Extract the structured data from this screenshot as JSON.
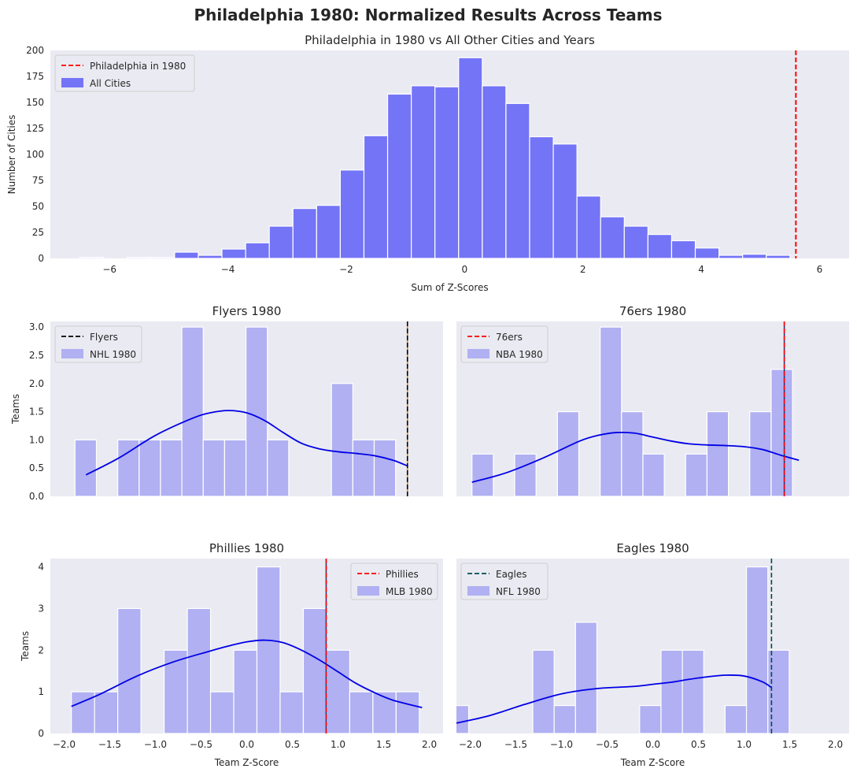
{
  "suptitle": "Philadelphia 1980: Normalized Results Across Teams",
  "colors": {
    "background": "#eaeaf2",
    "hist_main": "#7474f7",
    "hist_team": "#b0b0f2",
    "kde": "#0000e6",
    "red": "#ff0000",
    "black": "#000000",
    "navy": "#1f2f6e",
    "teal": "#004d4d"
  },
  "chart_data": [
    {
      "type": "histogram",
      "title": "Philadelphia in 1980 vs All Other Cities and Years",
      "xlabel": "Sum of Z-Scores",
      "ylabel": "Number of Cities",
      "xlim": [
        -7.0,
        6.5
      ],
      "ylim": [
        0,
        200
      ],
      "xticks": [
        "−6",
        "−4",
        "−2",
        "0",
        "2",
        "4",
        "6"
      ],
      "xtick_values": [
        -6,
        -4,
        -2,
        0,
        2,
        4,
        6
      ],
      "yticks": [
        "0",
        "25",
        "50",
        "75",
        "100",
        "125",
        "150",
        "175",
        "200"
      ],
      "ytick_values": [
        0,
        25,
        50,
        75,
        100,
        125,
        150,
        175,
        200
      ],
      "bin_start": -6.5,
      "bin_width": 0.4,
      "counts": [
        1,
        0,
        1,
        1,
        6,
        3,
        9,
        15,
        31,
        48,
        51,
        85,
        118,
        158,
        166,
        165,
        193,
        166,
        149,
        117,
        110,
        60,
        40,
        31,
        23,
        17,
        10,
        3,
        4,
        3
      ],
      "kde": false,
      "vline": {
        "x": 5.6,
        "color": "#ff0000",
        "style": "dashed"
      },
      "legend": [
        {
          "label": "Philadelphia in 1980",
          "kind": "line",
          "color": "#ff0000"
        },
        {
          "label": "All Cities",
          "kind": "patch",
          "color": "#7474f7"
        }
      ],
      "legend_position": "upper left"
    },
    {
      "type": "histogram",
      "title": "Flyers 1980",
      "xlabel": "",
      "ylabel": "Teams",
      "xlim": [
        -2.15,
        2.15
      ],
      "ylim": [
        0,
        3.1
      ],
      "xticks": [],
      "xtick_values": [],
      "yticks": [
        "0.0",
        "0.5",
        "1.0",
        "1.5",
        "2.0",
        "2.5",
        "3.0"
      ],
      "ytick_values": [
        0,
        0.5,
        1.0,
        1.5,
        2.0,
        2.5,
        3.0
      ],
      "bin_start": -1.88,
      "bin_width": 0.234,
      "counts": [
        1,
        0,
        1,
        1,
        1,
        3,
        1,
        1,
        3,
        1,
        0,
        0,
        2,
        1,
        1
      ],
      "kde": true,
      "kde_points": [
        [
          -1.76,
          0.38
        ],
        [
          -1.4,
          0.68
        ],
        [
          -1.0,
          1.08
        ],
        [
          -0.6,
          1.38
        ],
        [
          -0.4,
          1.48
        ],
        [
          -0.2,
          1.52
        ],
        [
          0.0,
          1.48
        ],
        [
          0.2,
          1.34
        ],
        [
          0.4,
          1.13
        ],
        [
          0.6,
          0.94
        ],
        [
          0.8,
          0.84
        ],
        [
          1.0,
          0.79
        ],
        [
          1.2,
          0.76
        ],
        [
          1.4,
          0.72
        ],
        [
          1.6,
          0.64
        ],
        [
          1.76,
          0.54
        ]
      ],
      "vline": {
        "x": 1.76,
        "color": "#000000",
        "style": "dashed"
      },
      "legend": [
        {
          "label": "Flyers",
          "kind": "line",
          "color": "#000000"
        },
        {
          "label": "NHL 1980",
          "kind": "patch",
          "color": "#b0b0f2"
        }
      ],
      "legend_position": "upper left"
    },
    {
      "type": "histogram",
      "title": "76ers 1980",
      "xlabel": "",
      "ylabel": "",
      "xlim": [
        -2.15,
        2.15
      ],
      "ylim": [
        0,
        3.1
      ],
      "xticks": [],
      "xtick_values": [],
      "yticks": [],
      "ytick_values": [],
      "bin_start": -1.98,
      "bin_width": 0.234,
      "counts": [
        0.75,
        0,
        0.75,
        0,
        1.5,
        0,
        3.0,
        1.5,
        0.75,
        0,
        0.75,
        1.5,
        0,
        1.5,
        2.25
      ],
      "kde": true,
      "kde_points": [
        [
          -1.98,
          0.25
        ],
        [
          -1.6,
          0.42
        ],
        [
          -1.2,
          0.68
        ],
        [
          -0.8,
          0.98
        ],
        [
          -0.6,
          1.08
        ],
        [
          -0.4,
          1.13
        ],
        [
          -0.2,
          1.12
        ],
        [
          0.0,
          1.05
        ],
        [
          0.2,
          0.98
        ],
        [
          0.4,
          0.93
        ],
        [
          0.6,
          0.91
        ],
        [
          0.8,
          0.9
        ],
        [
          1.0,
          0.88
        ],
        [
          1.2,
          0.83
        ],
        [
          1.4,
          0.73
        ],
        [
          1.6,
          0.64
        ]
      ],
      "vline": {
        "x": 1.44,
        "color": "#ff0000",
        "style": "dashed"
      },
      "legend": [
        {
          "label": "76ers",
          "kind": "line",
          "color": "#ff0000"
        },
        {
          "label": "NBA 1980",
          "kind": "patch",
          "color": "#b0b0f2"
        }
      ],
      "legend_position": "upper left"
    },
    {
      "type": "histogram",
      "title": "Phillies 1980",
      "xlabel": "Team Z-Score",
      "ylabel": "Teams",
      "xlim": [
        -2.15,
        2.15
      ],
      "ylim": [
        0,
        4.2
      ],
      "xticks": [
        "−2.0",
        "−1.5",
        "−1.0",
        "−0.5",
        "0.0",
        "0.5",
        "1.0",
        "1.5",
        "2.0"
      ],
      "xtick_values": [
        -2.0,
        -1.5,
        -1.0,
        -0.5,
        0.0,
        0.5,
        1.0,
        1.5,
        2.0
      ],
      "yticks": [
        "0",
        "1",
        "2",
        "3",
        "4"
      ],
      "ytick_values": [
        0,
        1,
        2,
        3,
        4
      ],
      "bin_start": -1.92,
      "bin_width": 0.254,
      "counts": [
        1,
        1,
        3,
        0,
        2,
        3,
        1,
        2,
        4,
        1,
        3,
        2,
        1,
        1,
        1
      ],
      "kde": true,
      "kde_points": [
        [
          -1.92,
          0.65
        ],
        [
          -1.6,
          0.95
        ],
        [
          -1.2,
          1.38
        ],
        [
          -0.8,
          1.72
        ],
        [
          -0.4,
          1.98
        ],
        [
          -0.2,
          2.1
        ],
        [
          0.0,
          2.2
        ],
        [
          0.2,
          2.24
        ],
        [
          0.4,
          2.18
        ],
        [
          0.6,
          2.0
        ],
        [
          0.8,
          1.76
        ],
        [
          1.0,
          1.48
        ],
        [
          1.2,
          1.2
        ],
        [
          1.4,
          0.98
        ],
        [
          1.6,
          0.8
        ],
        [
          1.92,
          0.62
        ]
      ],
      "vline": {
        "x": 0.87,
        "color": "#ff0000",
        "style": "dashed"
      },
      "legend": [
        {
          "label": "Phillies",
          "kind": "line",
          "color": "#ff0000"
        },
        {
          "label": "MLB 1980",
          "kind": "patch",
          "color": "#b0b0f2"
        }
      ],
      "legend_position": "upper right"
    },
    {
      "type": "histogram",
      "title": "Eagles 1980",
      "xlabel": "Team Z-Score",
      "ylabel": "",
      "xlim": [
        -2.15,
        2.15
      ],
      "ylim": [
        0,
        4.2
      ],
      "xticks": [
        "−2.0",
        "−1.5",
        "−1.0",
        "−0.5",
        "0.0",
        "0.5",
        "1.0",
        "1.5",
        "2.0"
      ],
      "xtick_values": [
        -2.0,
        -1.5,
        -1.0,
        -0.5,
        0.0,
        0.5,
        1.0,
        1.5,
        2.0
      ],
      "yticks": [],
      "ytick_values": [],
      "bin_start": -2.25,
      "bin_width": 0.234,
      "counts": [
        0.67,
        0,
        0,
        0,
        2.0,
        0.67,
        2.67,
        0,
        0,
        0.67,
        2.0,
        2.0,
        0,
        0.67,
        4.0,
        2.0
      ],
      "kde": true,
      "kde_points": [
        [
          -2.15,
          0.25
        ],
        [
          -1.8,
          0.42
        ],
        [
          -1.4,
          0.7
        ],
        [
          -1.0,
          0.95
        ],
        [
          -0.6,
          1.08
        ],
        [
          -0.2,
          1.13
        ],
        [
          0.0,
          1.18
        ],
        [
          0.2,
          1.23
        ],
        [
          0.4,
          1.3
        ],
        [
          0.6,
          1.36
        ],
        [
          0.8,
          1.4
        ],
        [
          1.0,
          1.38
        ],
        [
          1.2,
          1.24
        ],
        [
          1.3,
          1.1
        ]
      ],
      "vline": {
        "x": 1.3,
        "color": "#004d4d",
        "style": "dashed"
      },
      "legend": [
        {
          "label": "Eagles",
          "kind": "line",
          "color": "#004d4d"
        },
        {
          "label": "NFL 1980",
          "kind": "patch",
          "color": "#b0b0f2"
        }
      ],
      "legend_position": "upper left"
    }
  ]
}
